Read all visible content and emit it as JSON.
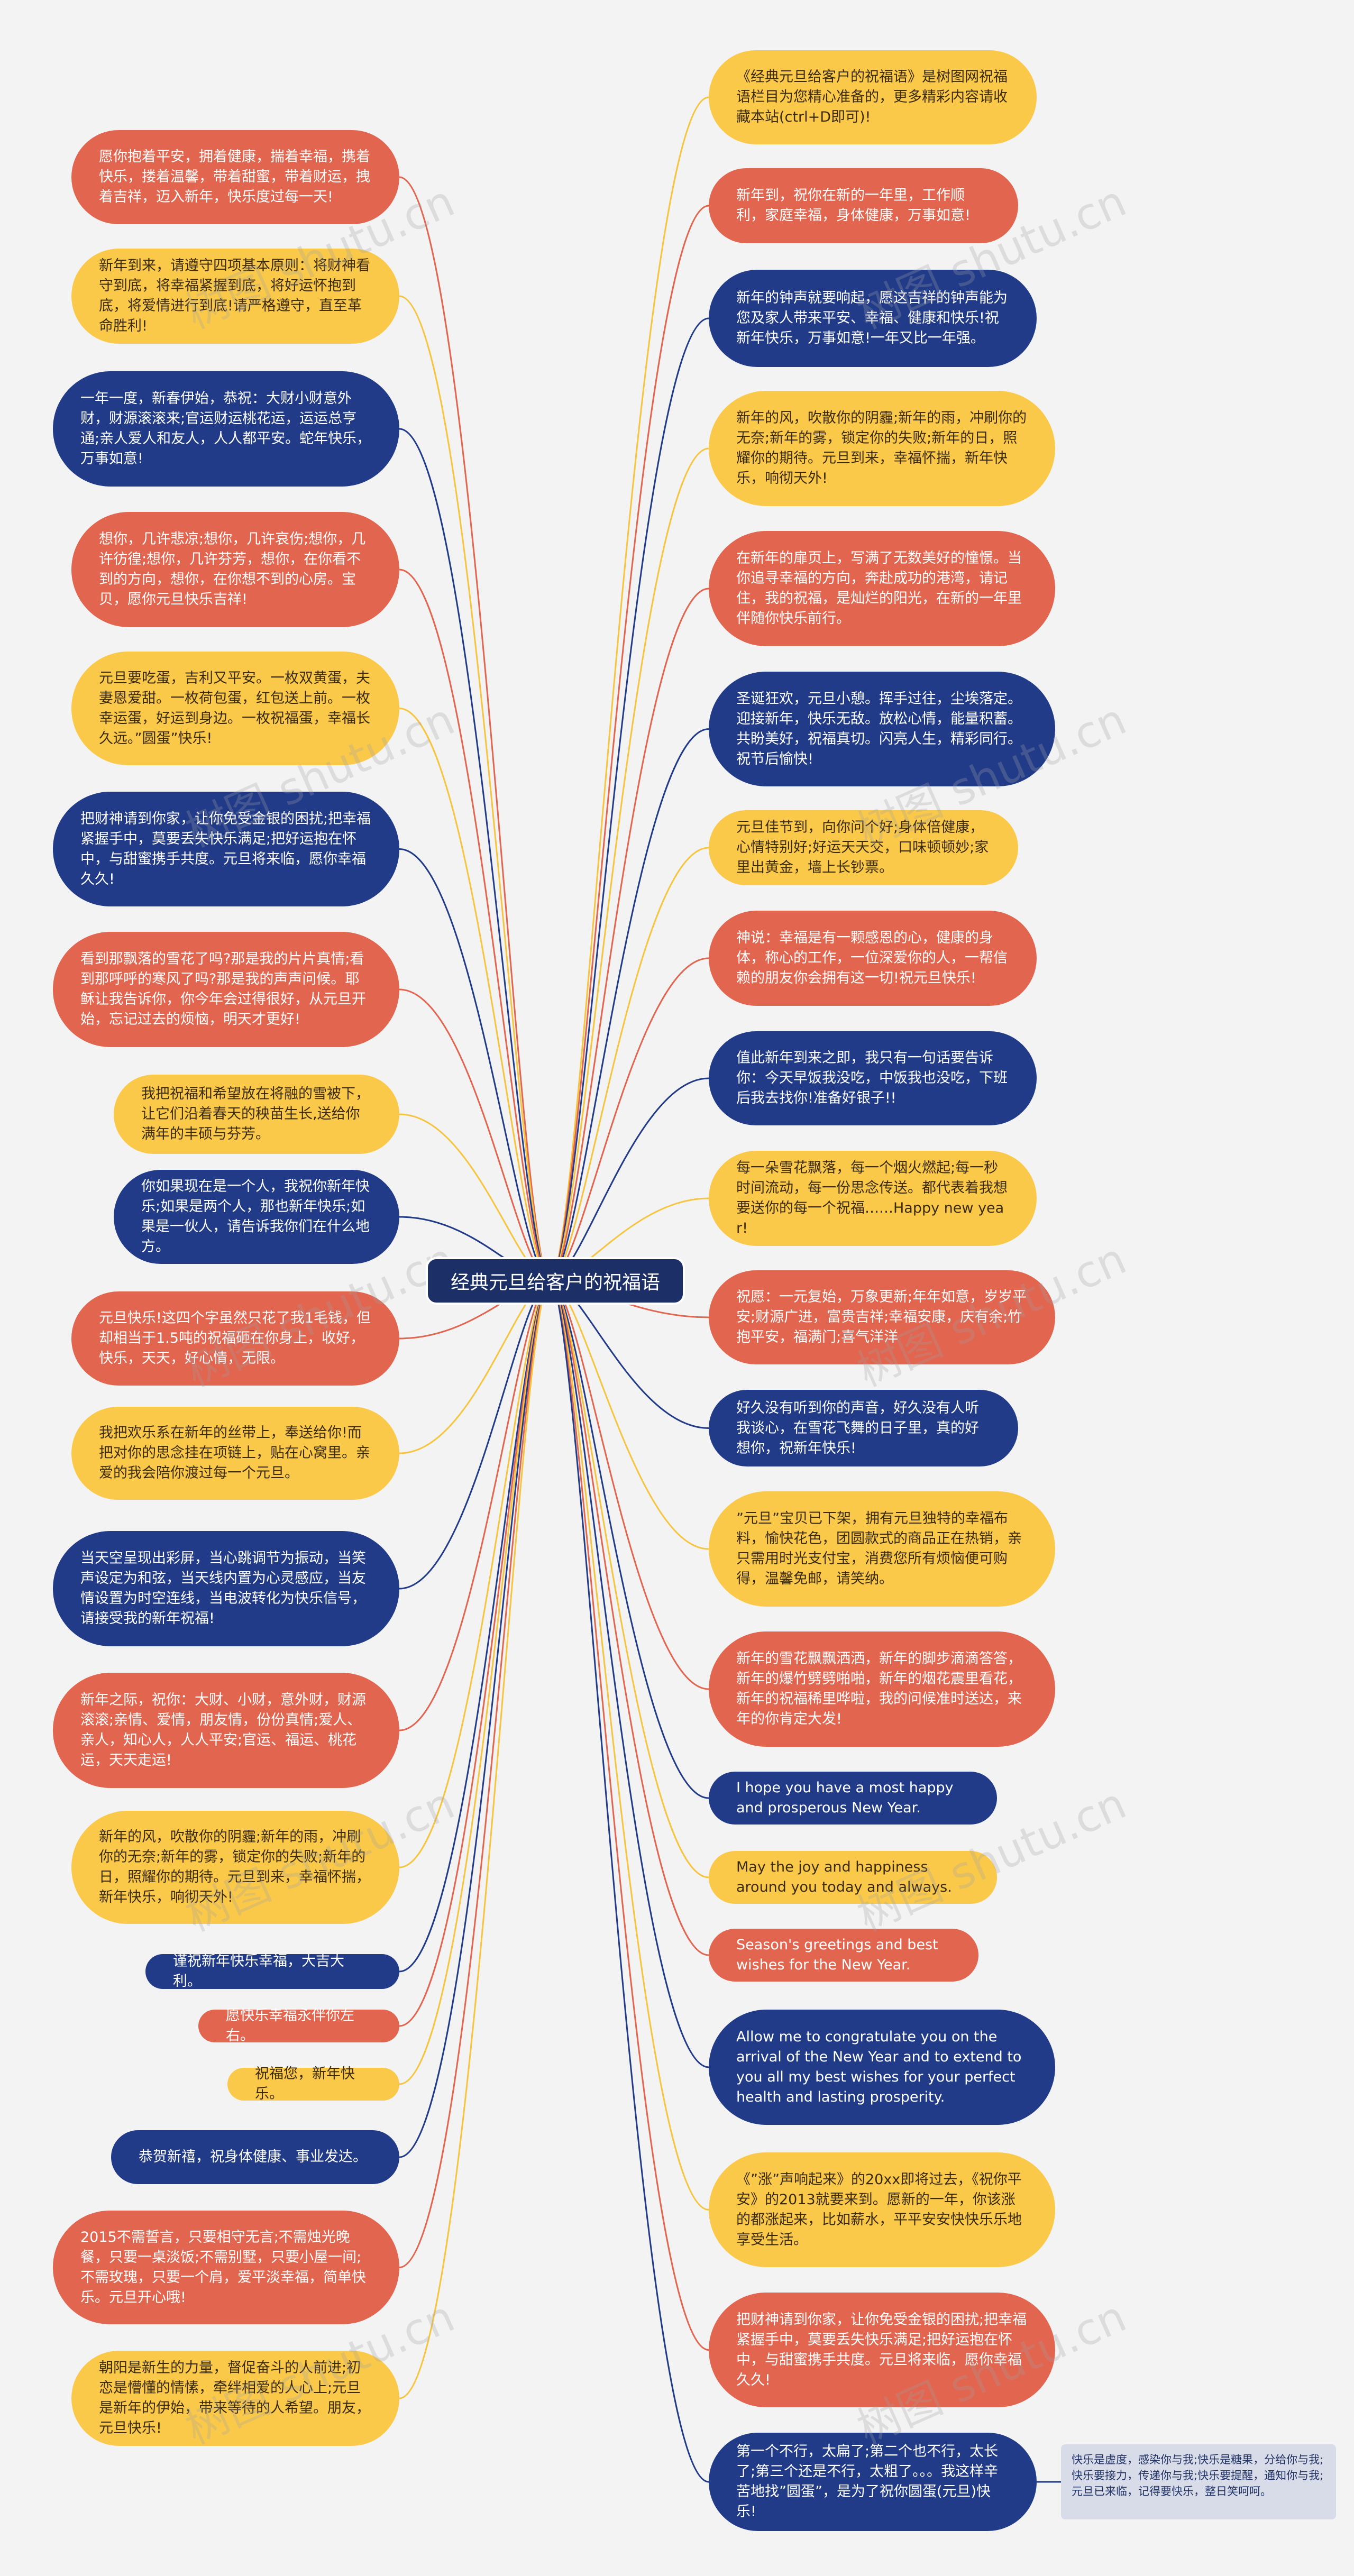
{
  "root": "经典元旦给客户的祝福语",
  "left": [
    {
      "text": "愿你抱着平安，拥着健康，揣着幸福，携着快乐，搂着温馨，带着甜蜜，带着财运，拽着吉祥，迈入新年，快乐度过每一天!",
      "color": "red"
    },
    {
      "text": "新年到来，请遵守四项基本原则：将财神看守到底，将幸福紧握到底，将好运怀抱到底，将爱情进行到底!请严格遵守，直至革命胜利!",
      "color": "yellow"
    },
    {
      "text": "一年一度，新春伊始，恭祝：大财小财意外财，财源滚滚来;官运财运桃花运，运运总亨通;亲人爱人和友人，人人都平安。蛇年快乐，万事如意!",
      "color": "blue"
    },
    {
      "text": "想你，几许悲凉;想你，几许哀伤;想你，几许彷徨;想你，几许芬芳，想你，在你看不到的方向，想你，在你想不到的心房。宝贝，愿你元旦快乐吉祥!",
      "color": "red"
    },
    {
      "text": "元旦要吃蛋，吉利又平安。一枚双黄蛋，夫妻恩爱甜。一枚荷包蛋，红包送上前。一枚幸运蛋，好运到身边。一枚祝福蛋，幸福长久远。”圆蛋”快乐!",
      "color": "yellow"
    },
    {
      "text": "把财神请到你家，让你免受金银的困扰;把幸福紧握手中，莫要丢失快乐满足;把好运抱在怀中，与甜蜜携手共度。元旦将来临，愿你幸福久久!",
      "color": "blue"
    },
    {
      "text": "看到那飘落的雪花了吗?那是我的片片真情;看到那呼呼的寒风了吗?那是我的声声问候。耶稣让我告诉你，你今年会过得很好，从元旦开始，忘记过去的烦恼，明天才更好!",
      "color": "red"
    },
    {
      "text": "我把祝福和希望放在将融的雪被下，让它们沿着春天的秧苗生长,送给你满年的丰硕与芬芳。",
      "color": "yellow"
    },
    {
      "text": "你如果现在是一个人，我祝你新年快乐;如果是两个人，那也新年快乐;如果是一伙人，请告诉我你们在什么地方。",
      "color": "blue"
    },
    {
      "text": "元旦快乐!这四个字虽然只花了我1毛钱，但却相当于1.5吨的祝福砸在你身上，收好，快乐，天天，好心情，无限。",
      "color": "red"
    },
    {
      "text": "我把欢乐系在新年的丝带上，奉送给你!而把对你的思念挂在项链上，贴在心窝里。亲爱的我会陪你渡过每一个元旦。",
      "color": "yellow"
    },
    {
      "text": "当天空呈现出彩屏，当心跳调节为振动，当笑声设定为和弦，当天线内置为心灵感应，当友情设置为时空连线，当电波转化为快乐信号，请接受我的新年祝福!",
      "color": "blue"
    },
    {
      "text": "新年之际，祝你：大财、小财，意外财，财源滚滚;亲情、爱情，朋友情，份份真情;爱人、亲人，知心人，人人平安;官运、福运、桃花运，天天走运!",
      "color": "red"
    },
    {
      "text": "新年的风，吹散你的阴霾;新年的雨，冲刷你的无奈;新年的雾，锁定你的失败;新年的日，照耀你的期待。元旦到来，幸福怀揣，新年快乐，响彻天外!",
      "color": "yellow"
    },
    {
      "text": "谨祝新年快乐幸福，大吉大利。",
      "color": "blue"
    },
    {
      "text": "愿快乐幸福永伴你左右。",
      "color": "red"
    },
    {
      "text": "祝福您，新年快乐。",
      "color": "yellow"
    },
    {
      "text": "恭贺新禧，祝身体健康、事业发达。",
      "color": "blue"
    },
    {
      "text": "2015不需誓言，只要相守无言;不需烛光晚餐，只要一桌淡饭;不需别墅，只要小屋一间;不需玫瑰，只要一个肩，爱平淡幸福，简单快乐。元旦开心哦!",
      "color": "red"
    },
    {
      "text": "朝阳是新生的力量，督促奋斗的人前进;初恋是懵懂的情愫，牵绊相爱的人心上;元旦是新年的伊始，带来等待的人希望。朋友，元旦快乐!",
      "color": "yellow"
    }
  ],
  "right": [
    {
      "text": "《经典元旦给客户的祝福语》是树图网祝福语栏目为您精心准备的，更多精彩内容请收藏本站(ctrl+D即可)!",
      "color": "yellow"
    },
    {
      "text": "新年到，祝你在新的一年里，工作顺利，家庭幸福，身体健康，万事如意!",
      "color": "red"
    },
    {
      "text": "新年的钟声就要响起，愿这吉祥的钟声能为您及家人带来平安、幸福、健康和快乐!祝新年快乐，万事如意!一年又比一年强。",
      "color": "blue"
    },
    {
      "text": "新年的风，吹散你的阴霾;新年的雨，冲刷你的无奈;新年的雾，锁定你的失败;新年的日，照耀你的期待。元旦到来，幸福怀揣，新年快乐，响彻天外!",
      "color": "yellow"
    },
    {
      "text": "在新年的扉页上，写满了无数美好的憧憬。当你追寻幸福的方向，奔赴成功的港湾，请记住，我的祝福，是灿烂的阳光，在新的一年里伴随你快乐前行。",
      "color": "red"
    },
    {
      "text": "圣诞狂欢，元旦小憩。挥手过往，尘埃落定。迎接新年，快乐无敌。放松心情，能量积蓄。共盼美好，祝福真切。闪亮人生，精彩同行。祝节后愉快!",
      "color": "blue"
    },
    {
      "text": "元旦佳节到，向你问个好;身体倍健康，心情特别好;好运天天交，口味顿顿妙;家里出黄金，墙上长钞票。",
      "color": "yellow"
    },
    {
      "text": "神说：幸福是有一颗感恩的心，健康的身体，称心的工作，一位深爱你的人，一帮信赖的朋友你会拥有这一切!祝元旦快乐!",
      "color": "red"
    },
    {
      "text": "值此新年到来之即，我只有一句话要告诉你：今天早饭我没吃，中饭我也没吃，下班后我去找你!准备好银子!!",
      "color": "blue"
    },
    {
      "text": "每一朵雪花飘落，每一个烟火燃起;每一秒时间流动，每一份思念传送。都代表着我想要送你的每一个祝福……Happy new year!",
      "color": "yellow"
    },
    {
      "text": "祝愿：一元复始，万象更新;年年如意，岁岁平安;财源广进，富贵吉祥;幸福安康，庆有余;竹抱平安，福满门;喜气洋洋",
      "color": "red"
    },
    {
      "text": "好久没有听到你的声音，好久没有人听我谈心，在雪花飞舞的日子里，真的好想你，祝新年快乐!",
      "color": "blue"
    },
    {
      "text": "”元旦”宝贝已下架，拥有元旦独特的幸福布料，愉快花色，团圆款式的商品正在热销，亲只需用时光支付宝，消费您所有烦恼便可购得，温馨免邮，请笑纳。",
      "color": "yellow"
    },
    {
      "text": "新年的雪花飘飘洒洒，新年的脚步滴滴答答，新年的爆竹劈劈啪啪，新年的烟花震里看花，新年的祝福稀里哗啦，我的问候准时送达，来年的你肯定大发!",
      "color": "red"
    },
    {
      "text": "I hope you have a most happy and prosperous New Year.",
      "color": "blue",
      "en": true
    },
    {
      "text": "May the joy and happiness around you today and always.",
      "color": "yellow",
      "en": true
    },
    {
      "text": "Season's greetings and best wishes for the New Year.",
      "color": "red",
      "en": true
    },
    {
      "text": "Allow me to congratulate you on the arrival of the New Year and to extend to you all my best wishes for your perfect health and lasting prosperity.",
      "color": "blue",
      "en": true
    },
    {
      "text": "《”涨”声响起来》的20xx即将过去，《祝你平安》的2013就要来到。愿新的一年，你该涨的都涨起来，比如薪水，平平安安快快乐乐地享受生活。",
      "color": "yellow"
    },
    {
      "text": "把财神请到你家，让你免受金银的困扰;把幸福紧握手中，莫要丢失快乐满足;把好运抱在怀中，与甜蜜携手共度。元旦将来临，愿你幸福久久!",
      "color": "red"
    },
    {
      "text": "第一个不行，太扁了;第二个也不行，太长了;第三个还是不行，太粗了。。。我这样辛苦地找”圆蛋”，是为了祝你圆蛋(元旦)快乐!",
      "color": "blue"
    }
  ],
  "note": "快乐是虚度，感染你与我;快乐是糖果，分给你与我;快乐要接力，传递你与我;快乐要提醒，通知你与我;元旦已来临，记得要快乐，整日笑呵呵。",
  "watermark": "树图 shutu.cn",
  "colors": {
    "red": "#e2654f",
    "yellow": "#fbc94a",
    "blue": "#213b89",
    "root": "#1c2f66",
    "line_red": "#e2654f",
    "line_yellow": "#f6c53f",
    "line_blue": "#213b89"
  }
}
